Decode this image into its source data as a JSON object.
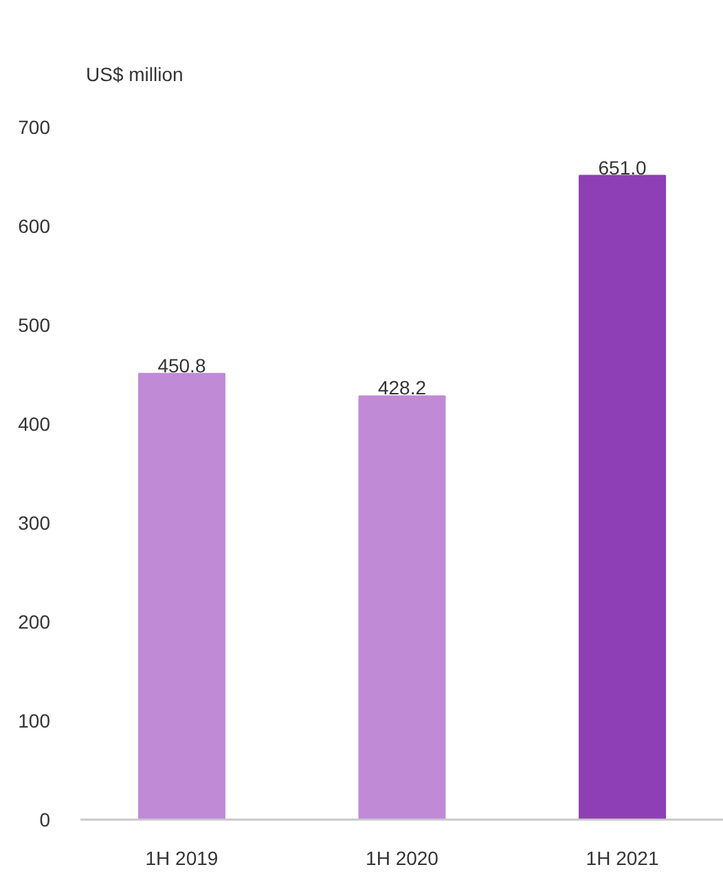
{
  "chart_data": {
    "type": "bar",
    "ylabel": "US$ million",
    "categories": [
      "1H 2019",
      "1H 2020",
      "1H 2021"
    ],
    "values": [
      450.8,
      428.2,
      651.0
    ],
    "value_labels": [
      "450.8",
      "428.2",
      "651.0"
    ],
    "colors": [
      "#c08ad6",
      "#c08ad6",
      "#8e3fb5"
    ],
    "ylim": [
      0,
      700
    ],
    "yticks": [
      0,
      100,
      200,
      300,
      400,
      500,
      600,
      700
    ],
    "grid": false
  }
}
